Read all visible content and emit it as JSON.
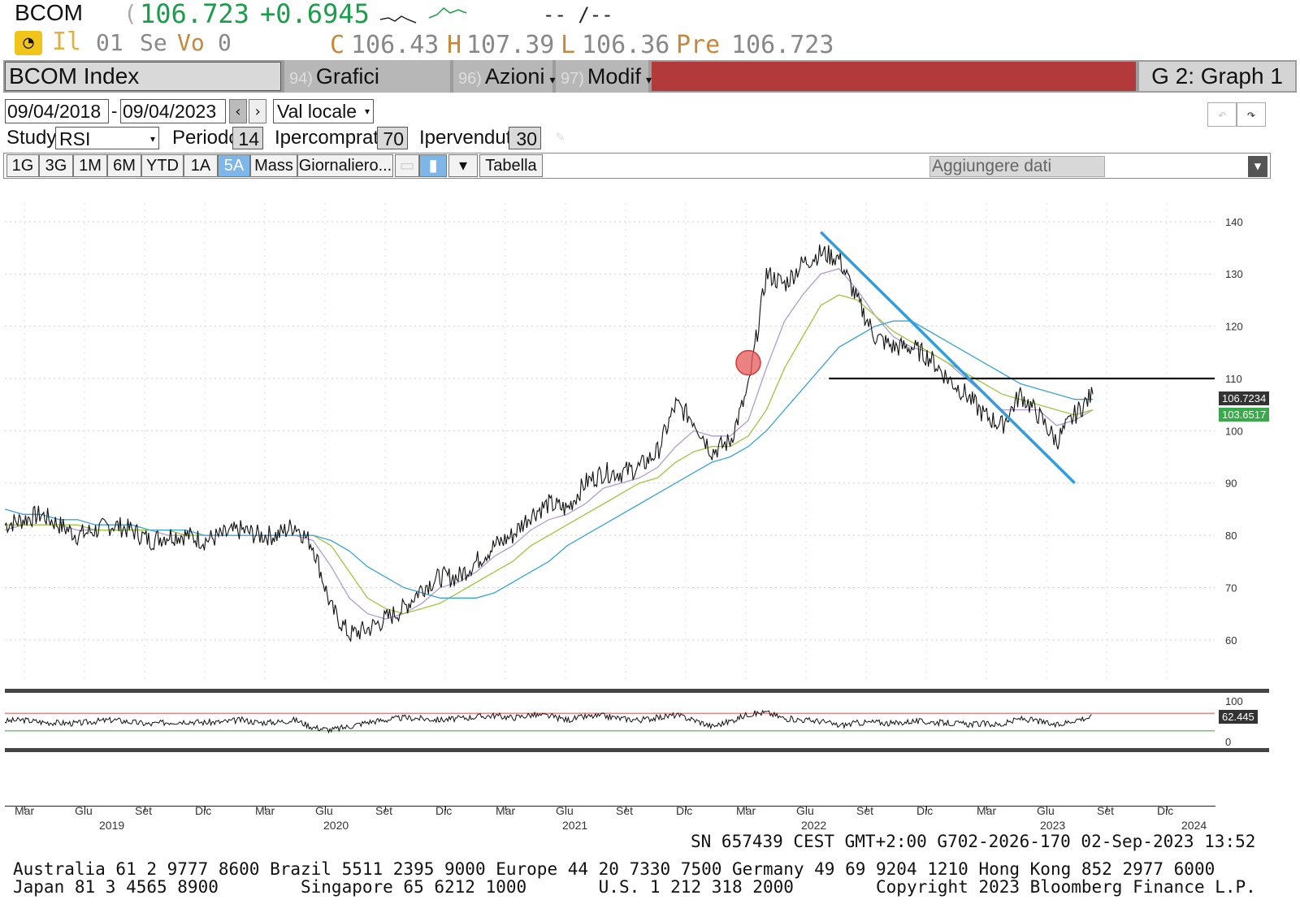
{
  "header": {
    "ticker": "BCOM",
    "paren": "(",
    "last_price": "106.723",
    "change": "+0.6945",
    "placeholder_dash": "-- /--",
    "row2_il": "Il",
    "row2_01": "01",
    "row2_se": "Se",
    "row2_vo": "Vo",
    "row2_vo_val": "0",
    "c_label": "C",
    "c_val": "106.43",
    "h_label": "H",
    "h_val": "107.39",
    "l_label": "L",
    "l_val": "106.36",
    "pre_label": "Pre",
    "pre_val": "106.723"
  },
  "toolbar": {
    "security": "BCOM Index",
    "tab_suggested_num": "94)",
    "tab_suggested": "Grafici suggeriti",
    "tab_actions_num": "96)",
    "tab_actions": "Azioni",
    "tab_modify_num": "97)",
    "tab_modify": "Modif",
    "graph_label": "G 2: Graph 1"
  },
  "controls": {
    "date_from": "09/04/2018",
    "date_sep": "-",
    "date_to": "09/04/2023",
    "currency": "Val locale",
    "study_label": "Study",
    "study_value": "RSI",
    "period_label": "Periodo",
    "period_value": "14",
    "overbought_label": "Ipercomprato",
    "overbought_value": "70",
    "oversold_label": "Ipervenduto",
    "oversold_value": "30",
    "timeframes": [
      "1G",
      "3G",
      "1M",
      "6M",
      "YTD",
      "1A",
      "5A",
      "Mass"
    ],
    "selected_timeframe": "5A",
    "frequency": "Giornaliero...",
    "table_button": "Tabella",
    "add_data": "Aggiungere dati"
  },
  "chart_data": [
    {
      "type": "line",
      "title": "",
      "ylim": [
        55,
        142
      ],
      "yticks": [
        140,
        130,
        120,
        110,
        100,
        90,
        80,
        70,
        60
      ],
      "dates": [
        "2018-09",
        "2018-10",
        "2018-11",
        "2018-12",
        "2019-01",
        "2019-02",
        "2019-03",
        "2019-04",
        "2019-05",
        "2019-06",
        "2019-07",
        "2019-08",
        "2019-09",
        "2019-10",
        "2019-11",
        "2019-12",
        "2020-01",
        "2020-02",
        "2020-03",
        "2020-04",
        "2020-05",
        "2020-06",
        "2020-07",
        "2020-08",
        "2020-09",
        "2020-10",
        "2020-11",
        "2020-12",
        "2021-01",
        "2021-02",
        "2021-03",
        "2021-04",
        "2021-05",
        "2021-06",
        "2021-07",
        "2021-08",
        "2021-09",
        "2021-10",
        "2021-11",
        "2021-12",
        "2022-01",
        "2022-02",
        "2022-03",
        "2022-04",
        "2022-05",
        "2022-06",
        "2022-07",
        "2022-08",
        "2022-09",
        "2022-10",
        "2022-11",
        "2022-12",
        "2023-01",
        "2023-02",
        "2023-03",
        "2023-04",
        "2023-05",
        "2023-06",
        "2023-07",
        "2023-08",
        "2023-09"
      ],
      "series": [
        {
          "values": [
            82,
            83,
            84,
            82,
            80,
            81,
            82,
            81,
            79,
            80,
            80,
            79,
            80,
            81,
            80,
            80,
            82,
            78,
            66,
            61,
            62,
            64,
            66,
            70,
            72,
            72,
            75,
            78,
            80,
            84,
            86,
            85,
            90,
            92,
            92,
            93,
            96,
            105,
            102,
            96,
            98,
            108,
            130,
            128,
            132,
            134,
            133,
            125,
            118,
            116,
            116,
            114,
            110,
            107,
            103,
            101,
            107,
            103,
            98,
            103,
            107
          ],
          "color": "#111111"
        }
      ],
      "moving_averages": [
        {
          "color": "#b39ad1",
          "values": [
            81,
            82,
            82,
            82,
            81,
            81,
            81,
            81,
            81,
            80,
            80,
            80,
            80,
            80,
            80,
            80,
            80,
            79,
            74,
            68,
            65,
            64,
            65,
            67,
            70,
            71,
            73,
            76,
            78,
            81,
            83,
            84,
            86,
            89,
            90,
            91,
            93,
            97,
            100,
            99,
            99,
            102,
            112,
            121,
            126,
            130,
            131,
            127,
            122,
            118,
            116,
            115,
            113,
            110,
            107,
            104,
            104,
            104,
            101,
            102,
            104
          ]
        },
        {
          "color": "#9bc93c",
          "values": [
            82,
            82,
            82,
            82,
            82,
            81,
            81,
            81,
            81,
            81,
            80,
            80,
            80,
            80,
            80,
            80,
            80,
            80,
            78,
            73,
            68,
            66,
            65,
            66,
            67,
            69,
            71,
            73,
            75,
            78,
            80,
            82,
            84,
            86,
            88,
            90,
            91,
            94,
            96,
            97,
            97,
            99,
            104,
            112,
            118,
            124,
            126,
            125,
            122,
            119,
            117,
            115,
            113,
            111,
            109,
            107,
            106,
            105,
            104,
            103,
            104
          ]
        },
        {
          "color": "#3aa4d8",
          "values": [
            85,
            84,
            84,
            83,
            83,
            82,
            82,
            82,
            81,
            81,
            81,
            80,
            80,
            80,
            80,
            80,
            80,
            80,
            79,
            77,
            74,
            72,
            70,
            69,
            68,
            68,
            68,
            69,
            71,
            73,
            75,
            78,
            80,
            82,
            84,
            86,
            88,
            90,
            92,
            94,
            95,
            97,
            100,
            104,
            108,
            112,
            116,
            118,
            120,
            121,
            121,
            119,
            117,
            115,
            113,
            111,
            109,
            108,
            107,
            106,
            106
          ]
        }
      ],
      "trendline_start": {
        "date": "2022-06",
        "value": 138
      },
      "trendline_end": {
        "date": "2023-08",
        "value": 90
      },
      "support_line": {
        "value": 110
      },
      "last_price_tag": "106.7234",
      "ma_tag": "103.6517",
      "highlight_circle": {
        "date": "2022-02",
        "value": 113
      }
    },
    {
      "type": "line",
      "title": "",
      "ylim": [
        0,
        100
      ],
      "yticks": [
        100,
        0
      ],
      "overbought": 70,
      "oversold": 30,
      "series": [
        {
          "values": [
            52,
            55,
            50,
            48,
            47,
            52,
            55,
            50,
            45,
            50,
            52,
            49,
            50,
            55,
            49,
            50,
            55,
            38,
            32,
            40,
            50,
            55,
            60,
            58,
            55,
            58,
            62,
            65,
            60,
            66,
            64,
            55,
            62,
            64,
            58,
            55,
            60,
            66,
            55,
            40,
            52,
            68,
            72,
            58,
            55,
            52,
            42,
            48,
            50,
            46,
            52,
            50,
            48,
            45,
            46,
            44,
            58,
            52,
            42,
            55,
            62
          ],
          "color": "#111111"
        }
      ],
      "rsi_tag": "62.445"
    }
  ],
  "xaxis": {
    "months": [
      "Mar",
      "Giu",
      "Set",
      "Dic",
      "Mar",
      "Giu",
      "Set",
      "Dic",
      "Mar",
      "Giu",
      "Set",
      "Dic",
      "Mar",
      "Giu",
      "Set",
      "Dic",
      "Mar",
      "Giu",
      "Set",
      "Dic"
    ],
    "years": [
      "2019",
      "2020",
      "2021",
      "2022",
      "2023",
      "2024"
    ]
  },
  "footer": {
    "status_line": "SN 657439 CEST GMT+2:00 G702-2026-170 02-Sep-2023 13:52",
    "contacts_line1": "Australia 61 2 9777 8600 Brazil 5511 2395 9000 Europe 44 20 7330 7500 Germany 49 69 9204 1210 Hong Kong 852 2977 6000",
    "contacts_line2": "Japan 81 3 4565 8900        Singapore 65 6212 1000       U.S. 1 212 318 2000        Copyright 2023 Bloomberg Finance L.P."
  },
  "colors": {
    "up_green": "#1a9e4a",
    "price_orange": "#c9873c",
    "toolbar_red": "#b23a3a",
    "selected_blue": "#7fb6e8",
    "trendline_blue": "#2f9ee0"
  }
}
